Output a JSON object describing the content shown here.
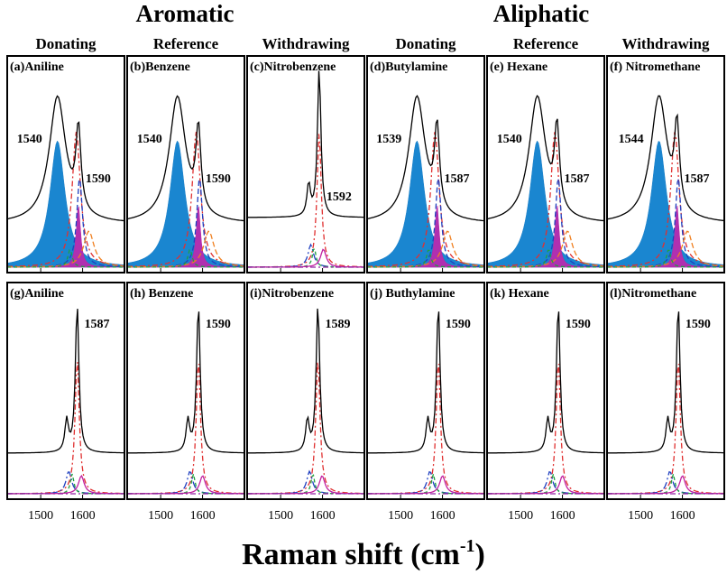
{
  "chart_data": {
    "type": "spectra",
    "group_titles": [
      "Aromatic",
      "Aliphatic"
    ],
    "columns": [
      "Donating",
      "Reference",
      "Withdrawing",
      "Donating",
      "Reference",
      "Withdrawing"
    ],
    "panels": [
      {
        "label": "(a)Aniline",
        "peaks": [
          1540,
          1590
        ]
      },
      {
        "label": "(b)Benzene",
        "peaks": [
          1540,
          1590
        ]
      },
      {
        "label": "(c)Nitrobenzene",
        "peaks": [
          1592
        ]
      },
      {
        "label": "(d)Butylamine",
        "peaks": [
          1539,
          1587
        ]
      },
      {
        "label": "(e) Hexane",
        "peaks": [
          1540,
          1587
        ]
      },
      {
        "label": "(f) Nitromethane",
        "peaks": [
          1544,
          1587
        ]
      },
      {
        "label": "(g)Aniline",
        "peaks": [
          1587
        ]
      },
      {
        "label": "(h) Benzene",
        "peaks": [
          1590
        ]
      },
      {
        "label": "(i)Nitrobenzene",
        "peaks": [
          1589
        ]
      },
      {
        "label": "(j) Buthylamine",
        "peaks": [
          1590
        ]
      },
      {
        "label": "(k) Hexane",
        "peaks": [
          1590
        ]
      },
      {
        "label": "(l)Nitromethane",
        "peaks": [
          1590
        ]
      }
    ],
    "xlabel": "Raman shift (cm",
    "xlabel_sup": "-1",
    "xlabel_end": ")",
    "xlim": [
      1420,
      1700
    ],
    "xticks": [
      1500,
      1600
    ]
  }
}
